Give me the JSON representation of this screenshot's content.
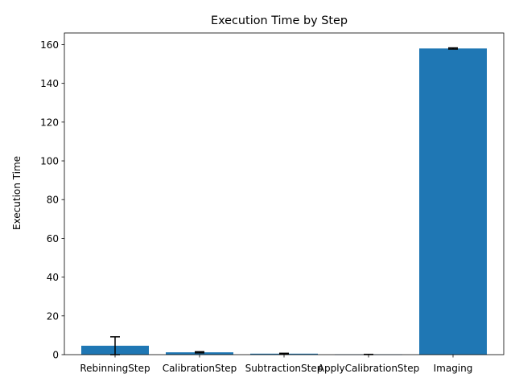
{
  "chart_data": {
    "type": "bar",
    "title": "Execution Time by Step",
    "xlabel": "",
    "ylabel": "Execution Time",
    "categories": [
      "RebinningStep",
      "CalibrationStep",
      "SubtractionStep",
      "ApplyCalibrationStep",
      "Imaging"
    ],
    "values": [
      4.6,
      1.2,
      0.5,
      0.1,
      158.0
    ],
    "errors": [
      4.6,
      0.3,
      0.2,
      0.05,
      0.3
    ],
    "ylim": [
      0,
      166
    ],
    "yticks": [
      0,
      20,
      40,
      60,
      80,
      100,
      120,
      140,
      160
    ],
    "grid": false,
    "legend": "none",
    "bar_color": "#1f77b4",
    "error_color": "#000000"
  }
}
